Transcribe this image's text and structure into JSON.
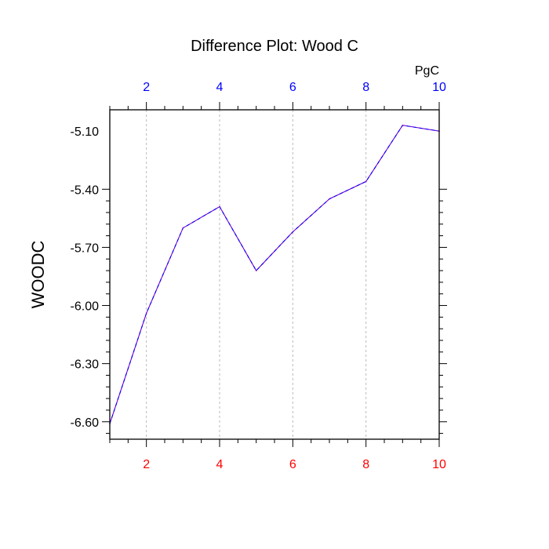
{
  "chart_data": {
    "type": "line",
    "title": "Difference Plot: Wood C",
    "ylabel": "WOODC",
    "xlabel": "",
    "units_label": "PgC",
    "x": [
      1,
      2,
      3,
      4,
      5,
      6,
      7,
      8,
      9,
      10
    ],
    "series": [
      {
        "values": [
          -6.61,
          -6.04,
          -5.6,
          -5.49,
          -5.82,
          -5.62,
          -5.45,
          -5.36,
          -5.07,
          -5.1
        ],
        "color": "#7700cc",
        "dash_color": "#0000ff"
      }
    ],
    "xlim": [
      1,
      10
    ],
    "ylim": [
      -6.69,
      -4.99
    ],
    "yticks": [
      -6.6,
      -6.3,
      -6.0,
      -5.7,
      -5.4,
      -5.1
    ],
    "ytick_labels": [
      "-6.60",
      "-6.30",
      "-6.00",
      "-5.70",
      "-5.40",
      "-5.10"
    ],
    "xticks_bottom": [
      2,
      4,
      6,
      8,
      10
    ],
    "xtick_labels_bottom": [
      "2",
      "4",
      "6",
      "8",
      "10"
    ],
    "xticks_top": [
      2,
      4,
      6,
      8,
      10
    ],
    "xtick_labels_top": [
      "2",
      "4",
      "6",
      "8",
      "10"
    ],
    "bottom_tick_color": "#ff0000",
    "top_tick_color": "#0000ff",
    "grid": "vertical dotted at x ticks",
    "legend": "none"
  }
}
